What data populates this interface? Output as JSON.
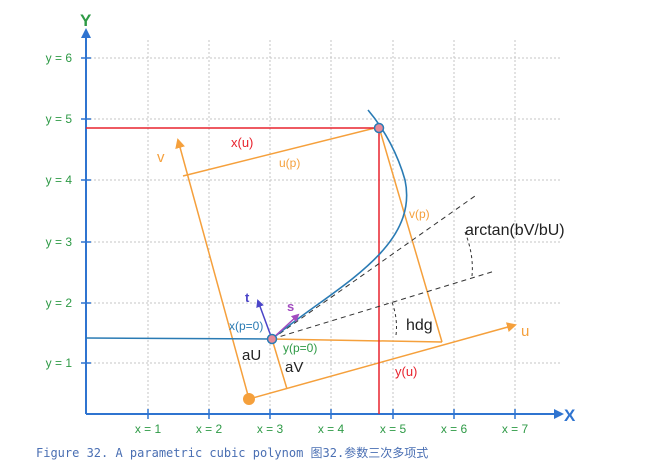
{
  "axes": {
    "x_label": "X",
    "y_label": "Y",
    "x_ticks": [
      "x = 1",
      "x = 2",
      "x = 3",
      "x = 4",
      "x = 5",
      "x = 6",
      "x = 7"
    ],
    "y_ticks": [
      "y = 1",
      "y = 2",
      "y = 3",
      "y = 4",
      "y = 5",
      "y = 6"
    ]
  },
  "labels": {
    "x_u": "x(u)",
    "y_u": "y(u)",
    "u_p": "u(p)",
    "v_p": "v(p)",
    "x_p0": "x(p=0)",
    "y_p0": "y(p=0)",
    "v_axis": "v",
    "u_axis": "u",
    "t": "t",
    "s": "s",
    "au": "aU",
    "av": "aV",
    "hdg": "hdg",
    "arctan": "arctan(bV/bU)"
  },
  "caption": "Figure 32. A parametric cubic polynom 图32.参数三次多项式",
  "colors": {
    "axis": "#2f74d0",
    "axis_label": "#2e9a46",
    "grid": "#c6c6c6",
    "orange": "#f5a03c",
    "red": "#e8232e",
    "curve": "#2a7bb4",
    "dashed": "#333333",
    "t_vector": "#4b45c8",
    "s_vector": "#a24cc0"
  }
}
